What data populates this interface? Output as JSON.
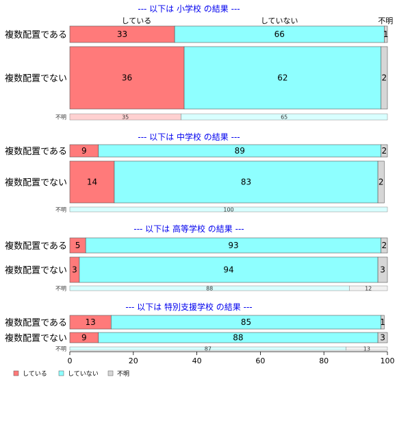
{
  "colors": {
    "yes": "#ff7a7a",
    "no": "#8effff",
    "unknown": "#d6d6d6",
    "header": "#0000ee"
  },
  "chart_data": {
    "type": "bar",
    "orientation": "horizontal",
    "stacked": true,
    "percent": true,
    "xlim": [
      0,
      100
    ],
    "x_ticks": [
      "0",
      "20",
      "40",
      "60",
      "80",
      "100"
    ],
    "column_labels": [
      "している",
      "していない",
      "不明"
    ],
    "legend": [
      "している",
      "していない",
      "不明"
    ],
    "legend_position": "bottom-left",
    "panels": [
      {
        "title": "--- 以下は 小学校 の結果 ---",
        "rows": [
          {
            "label": "複数配置である",
            "values": [
              33,
              66,
              1
            ]
          },
          {
            "label": "複数配置でない",
            "values": [
              36,
              62,
              2
            ]
          }
        ],
        "unknown_row": {
          "label": "不明",
          "values": [
            35,
            65,
            0
          ]
        }
      },
      {
        "title": "--- 以下は 中学校 の結果 ---",
        "rows": [
          {
            "label": "複数配置である",
            "values": [
              9,
              89,
              2
            ]
          },
          {
            "label": "複数配置でない",
            "values": [
              14,
              83,
              2
            ]
          }
        ],
        "unknown_row": {
          "label": "不明",
          "values": [
            0,
            100,
            0
          ]
        }
      },
      {
        "title": "--- 以下は 高等学校 の結果 ---",
        "rows": [
          {
            "label": "複数配置である",
            "values": [
              5,
              93,
              2
            ]
          },
          {
            "label": "複数配置でない",
            "values": [
              3,
              94,
              3
            ]
          }
        ],
        "unknown_row": {
          "label": "不明",
          "values": [
            0,
            88,
            12
          ]
        }
      },
      {
        "title": "--- 以下は 特別支援学校 の結果 ---",
        "rows": [
          {
            "label": "複数配置である",
            "values": [
              13,
              85,
              1
            ]
          },
          {
            "label": "複数配置でない",
            "values": [
              9,
              88,
              3
            ]
          }
        ],
        "unknown_row": {
          "label": "不明",
          "values": [
            0,
            87,
            13
          ]
        }
      }
    ]
  }
}
